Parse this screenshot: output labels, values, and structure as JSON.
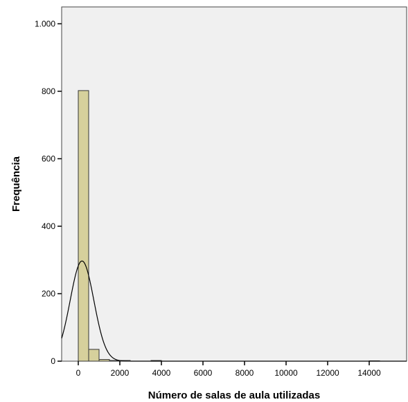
{
  "chart_data": {
    "type": "bar",
    "title": "",
    "xlabel": "Número de salas de aula utilizadas",
    "ylabel": "Frequência",
    "xlim": [
      -800,
      15800
    ],
    "ylim": [
      0,
      1050
    ],
    "x_ticks": [
      {
        "value": 0,
        "label": "0"
      },
      {
        "value": 2000,
        "label": "2000"
      },
      {
        "value": 4000,
        "label": "4000"
      },
      {
        "value": 6000,
        "label": "6000"
      },
      {
        "value": 8000,
        "label": "8000"
      },
      {
        "value": 10000,
        "label": "10000"
      },
      {
        "value": 12000,
        "label": "12000"
      },
      {
        "value": 14000,
        "label": "14000"
      }
    ],
    "y_ticks": [
      {
        "value": 0,
        "label": "0"
      },
      {
        "value": 200,
        "label": "200"
      },
      {
        "value": 400,
        "label": "400"
      },
      {
        "value": 600,
        "label": "600"
      },
      {
        "value": 800,
        "label": "800"
      },
      {
        "value": 1000,
        "label": "1.000"
      }
    ],
    "grid": false,
    "bin_width": 500,
    "bins": [
      {
        "x_start": 0,
        "x_end": 500,
        "value": 802
      },
      {
        "x_start": 500,
        "x_end": 1000,
        "value": 35
      },
      {
        "x_start": 1000,
        "x_end": 1500,
        "value": 5
      },
      {
        "x_start": 1500,
        "x_end": 2000,
        "value": 2
      },
      {
        "x_start": 2000,
        "x_end": 2500,
        "value": 2
      },
      {
        "x_start": 3500,
        "x_end": 4000,
        "value": 2
      },
      {
        "x_start": 14000,
        "x_end": 14500,
        "value": 1
      }
    ],
    "normal_curve": {
      "mean": 180,
      "peak": 297
    },
    "colors": {
      "bar_fill": "#d6d09c",
      "bar_stroke": "#333333",
      "plot_background": "#f0f0f0",
      "curve": "#000000"
    }
  }
}
